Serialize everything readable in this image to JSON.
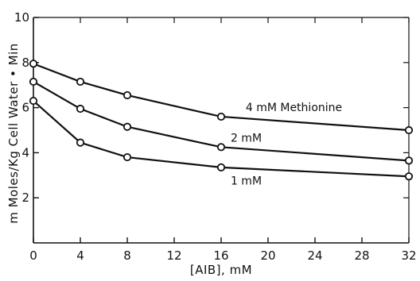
{
  "chart_data": {
    "type": "line",
    "title": "",
    "xlabel": "[AIB], mM",
    "ylabel": "m Moles/Kg Cell Water • Min",
    "xlim": [
      0,
      32
    ],
    "ylim": [
      0,
      10
    ],
    "x_ticks": [
      0,
      4,
      8,
      12,
      16,
      20,
      24,
      28,
      32
    ],
    "y_ticks": [
      2,
      4,
      6,
      8,
      10
    ],
    "grid": false,
    "legend": "none",
    "series": [
      {
        "name": "4 mM Methionine",
        "x": [
          0,
          4,
          8,
          16,
          32
        ],
        "y": [
          7.95,
          7.15,
          6.55,
          5.6,
          5.0
        ]
      },
      {
        "name": "2 mM",
        "x": [
          0,
          4,
          8,
          16,
          32
        ],
        "y": [
          7.15,
          5.95,
          5.15,
          4.25,
          3.65
        ]
      },
      {
        "name": "1 mM",
        "x": [
          0,
          4,
          8,
          16,
          32
        ],
        "y": [
          6.3,
          4.45,
          3.8,
          3.35,
          2.95
        ]
      }
    ],
    "colors": {
      "line": "#111111",
      "marker_fill": "#ffffff"
    }
  }
}
